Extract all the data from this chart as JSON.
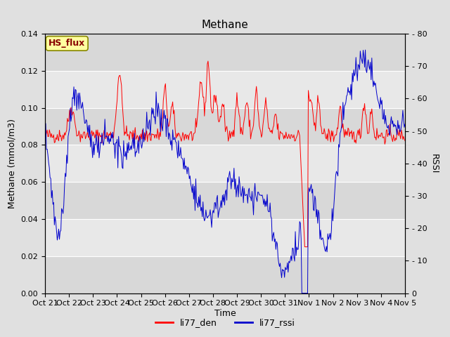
{
  "title": "Methane",
  "ylabel_left": "Methane (mmol/m3)",
  "ylabel_right": "RSSI",
  "xlabel": "Time",
  "ylim_left": [
    0.0,
    0.14
  ],
  "ylim_right": [
    0,
    80
  ],
  "color_red": "#FF0000",
  "color_blue": "#0000CC",
  "legend_labels": [
    "li77_den",
    "li77_rssi"
  ],
  "site_label": "HS_flux",
  "site_label_facecolor": "#FFFFA0",
  "site_label_edgecolor": "#888800",
  "bg_color": "#E0E0E0",
  "plot_bg_color": "#F0F0F0",
  "band_color_light": "#DCDCDC",
  "band_color_dark": "#C8C8C8",
  "grid_color": "#FFFFFF",
  "title_fontsize": 11,
  "axis_label_fontsize": 9,
  "tick_label_fontsize": 8,
  "xtick_labels": [
    "Oct 21",
    "Oct 22",
    "Oct 23",
    "Oct 24",
    "Oct 25",
    "Oct 26",
    "Oct 27",
    "Oct 28",
    "Oct 29",
    "Oct 30",
    "Oct 31",
    "Nov 1",
    "Nov 2",
    "Nov 3",
    "Nov 4",
    "Nov 5"
  ],
  "n_points": 500,
  "seed": 42
}
